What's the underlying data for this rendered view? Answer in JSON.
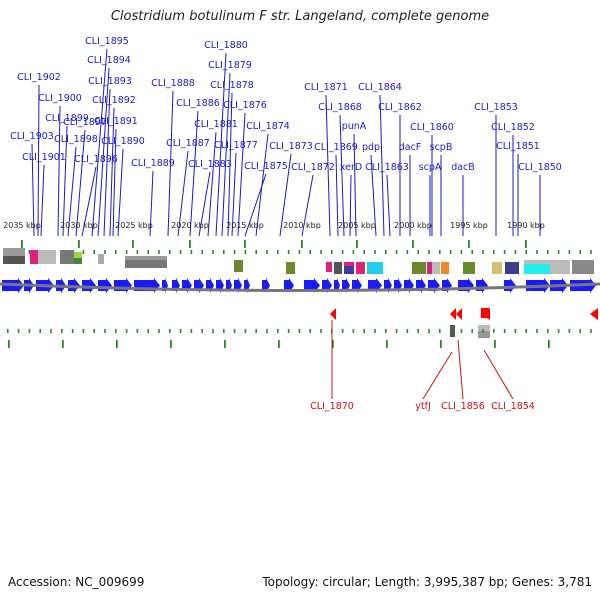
{
  "title": "Clostridium botulinum F str. Langeland, complete genome",
  "footer": {
    "accession": "Accession: NC_009699",
    "topology": "Topology: circular; Length: 3,995,387 bp; Genes: 3,781"
  },
  "colors": {
    "forward_gene": "#1a1aff",
    "reverse_gene": "#ff0000",
    "forward_label": "#1a1acc",
    "reverse_label": "#cc1111",
    "tick": "#2a8a2a",
    "backbone": "#777777"
  },
  "ruler_labels": [
    "2035 kbp",
    "2030 kbp",
    "2025 kbp",
    "2020 kbp",
    "2015 kbp",
    "2010 kbp",
    "2005 kbp",
    "2000 kbp",
    "1995 kbp",
    "1990 kbp"
  ],
  "forward_genes": [
    "CLI_1903",
    "CLI_1902",
    "CLI_1901",
    "CLI_1900",
    "CLI_1899",
    "CLI_1898",
    "CLI_1897",
    "CLI_1896",
    "CLI_1895",
    "CLI_1894",
    "CLI_1893",
    "CLI_1892",
    "CLI_1891",
    "CLI_1890",
    "CLI_1889",
    "CLI_1888",
    "CLI_1887",
    "CLI_1886",
    "CLI_1883",
    "CLI_1881",
    "CLI_1880",
    "CLI_1879",
    "CLI_1878",
    "CLI_1877",
    "CLI_1876",
    "CLI_1875",
    "CLI_1874",
    "CLI_1873",
    "CLI_1872",
    "CLI_1871",
    "CLI_1869",
    "CLI_1868",
    "xerD",
    "punA",
    "pdp",
    "CLI_1864",
    "CLI_1863",
    "CLI_1862",
    "dacF",
    "scpA",
    "CLI_1860",
    "scpB",
    "dacB",
    "CLI_1853",
    "CLI_1852",
    "CLI_1851",
    "CLI_1850"
  ],
  "reverse_genes": [
    "CLI_1870",
    "ytfJ",
    "CLI_1856",
    "CLI_1854"
  ]
}
